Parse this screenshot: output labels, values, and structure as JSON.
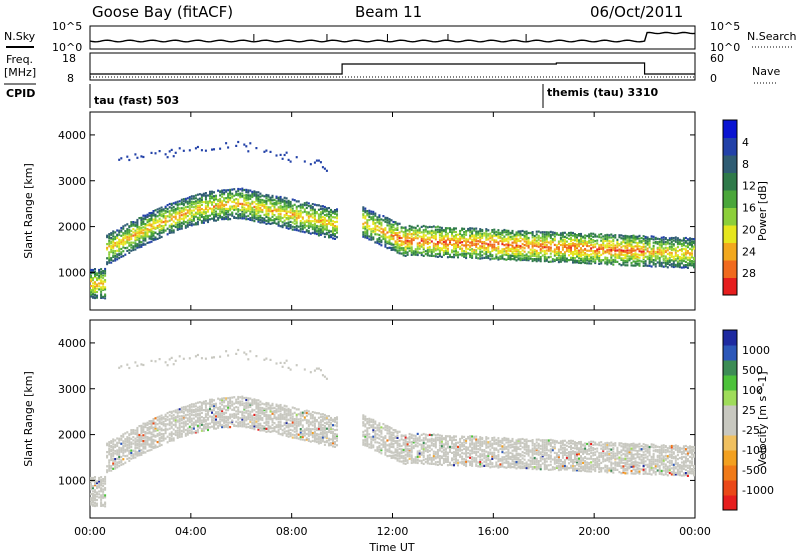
{
  "header": {
    "station": "Goose Bay (fitACF)",
    "beam": "Beam 11",
    "date": "06/Oct/2011"
  },
  "strip1": {
    "left_label": "N.Sky",
    "right_label": "N.Search",
    "left_ticks": [
      "10^5",
      "10^0"
    ],
    "right_ticks": [
      "10^5",
      "10^0"
    ]
  },
  "strip2": {
    "left_label_1": "Freq.",
    "left_label_2": "[MHz]",
    "right_label": "Nave",
    "left_ticks": [
      "18",
      "8"
    ],
    "right_ticks": [
      "60",
      "0"
    ]
  },
  "cpid": {
    "label": "CPID",
    "segments": [
      {
        "name": "tau (fast) 503",
        "start_hour": 0
      },
      {
        "name": "themis (tau) 3310",
        "start_hour": 18
      }
    ]
  },
  "chart_data": [
    {
      "type": "heatmap",
      "parameter": "Power",
      "ylabel": "Slant Range [km]",
      "ylim": [
        180,
        4500
      ],
      "yticks": [
        1000,
        2000,
        3000,
        4000
      ],
      "xlabel": "Time UT",
      "xticks": [
        "00:00",
        "04:00",
        "08:00",
        "12:00",
        "16:00",
        "20:00",
        "00:00"
      ],
      "xlim_hours": [
        0,
        24
      ],
      "colorbar": {
        "label": "Power [dB]",
        "ticks": [
          "4",
          "8",
          "12",
          "16",
          "20",
          "24",
          "28"
        ],
        "colors": [
          "#0a14d2",
          "#2241a8",
          "#2f5c73",
          "#2f7a4a",
          "#4aa63a",
          "#8ccf3a",
          "#e6e61e",
          "#f2a81e",
          "#f06a1e",
          "#e61e1e"
        ]
      }
    },
    {
      "type": "heatmap",
      "parameter": "Velocity",
      "ylabel": "Slant Range [km]",
      "ylim": [
        180,
        4500
      ],
      "yticks": [
        1000,
        2000,
        3000,
        4000
      ],
      "xlabel": "Time UT",
      "xticks": [
        "00:00",
        "04:00",
        "08:00",
        "12:00",
        "16:00",
        "20:00",
        "00:00"
      ],
      "xlim_hours": [
        0,
        24
      ],
      "colorbar": {
        "label": "Velocity [m s^-1]",
        "ticks": [
          "1000",
          "500",
          "100",
          "25",
          "-25",
          "-100",
          "-500",
          "-1000"
        ],
        "colors": [
          "#1e2aa0",
          "#2c57b8",
          "#3c8c55",
          "#4cc23a",
          "#9fdc5a",
          "#c8c8c0",
          "#c8c8c0",
          "#f0c060",
          "#f2a020",
          "#f07a18",
          "#ea4818",
          "#e61e1e"
        ]
      }
    }
  ]
}
